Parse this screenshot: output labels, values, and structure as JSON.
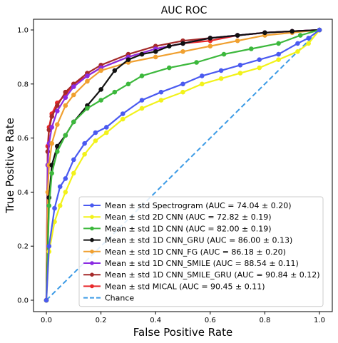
{
  "chart_data": {
    "type": "line",
    "title": "AUC ROC",
    "xlabel": "False Positive Rate",
    "ylabel": "True Positive Rate",
    "xlim": [
      0,
      1
    ],
    "ylim": [
      0,
      1
    ],
    "xticks": [
      "0.0",
      "0.2",
      "0.4",
      "0.6",
      "0.8",
      "1.0"
    ],
    "yticks": [
      "0.0",
      "0.2",
      "0.4",
      "0.6",
      "0.8",
      "1.0"
    ],
    "grid": false,
    "legend_position": "lower-right",
    "series": [
      {
        "name": "Mean ± std Spectrogram (AUC = 74.04 ± 0.20)",
        "color": "#4a5af0",
        "x": [
          0.0,
          0.01,
          0.03,
          0.05,
          0.07,
          0.1,
          0.14,
          0.18,
          0.22,
          0.28,
          0.35,
          0.42,
          0.5,
          0.57,
          0.64,
          0.71,
          0.78,
          0.85,
          0.92,
          0.96,
          1.0
        ],
        "y": [
          0.0,
          0.2,
          0.34,
          0.42,
          0.45,
          0.52,
          0.58,
          0.62,
          0.64,
          0.69,
          0.74,
          0.77,
          0.8,
          0.83,
          0.85,
          0.87,
          0.89,
          0.91,
          0.95,
          0.97,
          1.0
        ]
      },
      {
        "name": "Mean ± std 2D CNN (AUC = 72.82 ± 0.19)",
        "color": "#f2f21a",
        "x": [
          0.0,
          0.01,
          0.03,
          0.05,
          0.07,
          0.1,
          0.14,
          0.18,
          0.22,
          0.28,
          0.35,
          0.42,
          0.5,
          0.57,
          0.64,
          0.71,
          0.78,
          0.85,
          0.92,
          0.96,
          1.0
        ],
        "y": [
          0.0,
          0.18,
          0.29,
          0.35,
          0.4,
          0.47,
          0.54,
          0.59,
          0.62,
          0.67,
          0.71,
          0.74,
          0.77,
          0.8,
          0.82,
          0.84,
          0.86,
          0.89,
          0.92,
          0.95,
          1.0
        ]
      },
      {
        "name": "Mean ± std 1D CNN (AUC = 82.00 ± 0.19)",
        "color": "#3cb83c",
        "x": [
          0.0,
          0.01,
          0.02,
          0.04,
          0.07,
          0.1,
          0.15,
          0.2,
          0.25,
          0.3,
          0.35,
          0.45,
          0.55,
          0.65,
          0.75,
          0.85,
          0.93,
          1.0
        ],
        "y": [
          0.0,
          0.35,
          0.47,
          0.55,
          0.61,
          0.66,
          0.71,
          0.74,
          0.77,
          0.8,
          0.83,
          0.86,
          0.88,
          0.91,
          0.93,
          0.95,
          0.98,
          1.0
        ]
      },
      {
        "name": "Mean ± std 1D CNN_GRU (AUC = 86.00 ± 0.13)",
        "color": "#111111",
        "x": [
          0.0,
          0.01,
          0.02,
          0.04,
          0.07,
          0.1,
          0.15,
          0.2,
          0.25,
          0.3,
          0.35,
          0.4,
          0.45,
          0.5,
          0.6,
          0.7,
          0.8,
          0.9,
          1.0
        ],
        "y": [
          0.0,
          0.38,
          0.5,
          0.57,
          0.61,
          0.66,
          0.72,
          0.78,
          0.85,
          0.89,
          0.91,
          0.92,
          0.94,
          0.95,
          0.97,
          0.98,
          0.99,
          0.995,
          1.0
        ]
      },
      {
        "name": "Mean ± std 1D CNN_FG (AUC = 86.18 ± 0.20)",
        "color": "#f0a030",
        "x": [
          0.0,
          0.005,
          0.01,
          0.02,
          0.04,
          0.07,
          0.1,
          0.15,
          0.2,
          0.3,
          0.4,
          0.5,
          0.6,
          0.7,
          0.8,
          0.9,
          1.0
        ],
        "y": [
          0.0,
          0.4,
          0.5,
          0.58,
          0.65,
          0.72,
          0.76,
          0.81,
          0.85,
          0.88,
          0.9,
          0.92,
          0.94,
          0.96,
          0.98,
          0.99,
          1.0
        ]
      },
      {
        "name": "Mean ± std 1D CNN_SMILE (AUC = 88.54 ± 0.11)",
        "color": "#8a2be2",
        "x": [
          0.0,
          0.005,
          0.01,
          0.02,
          0.04,
          0.07,
          0.1,
          0.15,
          0.2,
          0.3,
          0.4,
          0.5,
          0.6,
          0.7,
          0.8,
          0.9,
          1.0
        ],
        "y": [
          0.0,
          0.5,
          0.58,
          0.64,
          0.7,
          0.75,
          0.79,
          0.83,
          0.86,
          0.9,
          0.93,
          0.95,
          0.97,
          0.98,
          0.99,
          0.995,
          1.0
        ]
      },
      {
        "name": "Mean ± std 1D CNN_SMILE_GRU (AUC = 90.84 ± 0.12)",
        "color": "#a52a2a",
        "x": [
          0.0,
          0.005,
          0.01,
          0.02,
          0.04,
          0.07,
          0.1,
          0.15,
          0.2,
          0.3,
          0.4,
          0.5,
          0.6,
          0.7,
          0.8,
          0.9,
          1.0
        ],
        "y": [
          0.0,
          0.55,
          0.63,
          0.68,
          0.72,
          0.77,
          0.8,
          0.84,
          0.87,
          0.91,
          0.94,
          0.96,
          0.97,
          0.98,
          0.99,
          0.995,
          1.0
        ]
      },
      {
        "name": "Mean ± std MICAL (AUC = 90.45 ± 0.11)",
        "color": "#e8282a",
        "x": [
          0.0,
          0.005,
          0.01,
          0.02,
          0.04,
          0.07,
          0.1,
          0.15,
          0.2,
          0.3,
          0.4,
          0.5,
          0.6,
          0.7,
          0.8,
          0.9,
          1.0
        ],
        "y": [
          0.0,
          0.57,
          0.64,
          0.69,
          0.73,
          0.76,
          0.8,
          0.83,
          0.86,
          0.9,
          0.93,
          0.95,
          0.96,
          0.98,
          0.99,
          0.995,
          1.0
        ]
      },
      {
        "name": "Chance",
        "color": "#3c9be6",
        "dashed": true,
        "x": [
          0,
          1
        ],
        "y": [
          0,
          1
        ]
      }
    ]
  }
}
